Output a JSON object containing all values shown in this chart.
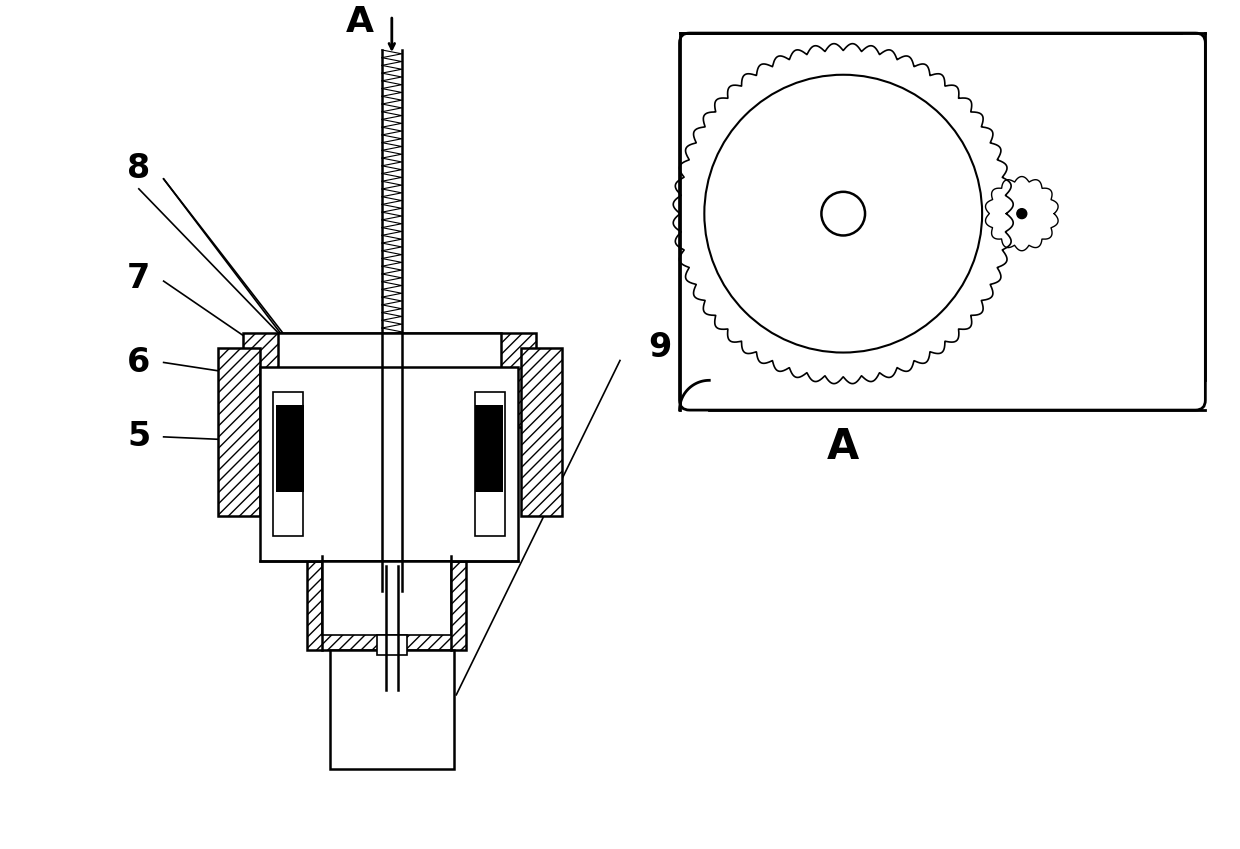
{
  "bg_color": "#ffffff",
  "line_color": "#000000",
  "fig_width": 12.4,
  "fig_height": 8.49,
  "dpi": 100
}
